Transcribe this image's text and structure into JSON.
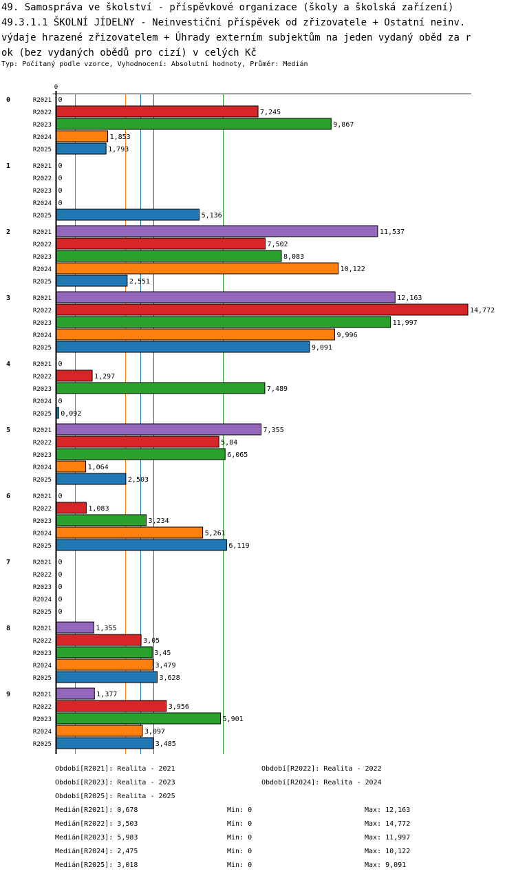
{
  "title_lines": [
    "49. Samospráva ve školství - příspěvkové organizace (školy a školská zařízení)",
    "49.3.1.1 ŠKOLNÍ JÍDELNY - Neinvestiční příspěvek od zřizovatele + Ostatní neinv.",
    "výdaje hrazené zřizovatelem + Úhrady externím subjektům na jeden vydaný oběd za r",
    "ok (bez vydaných obědů pro cizí) v celých Kč"
  ],
  "subtitle": "Typ: Počítaný podle vzorce, Vyhodnocení: Absolutní hodnoty, Průměr: Medián",
  "chart_data": {
    "type": "bar",
    "orientation": "horizontal",
    "title": "49.3.1.1 ŠKOLNÍ JÍDELNY - Neinvestiční příspěvek od zřizovatele + Ostatní neinv. výdaje hrazené zřizovatelem + Úhrady externím subjektům na jeden vydaný oběd za rok (bez vydaných obědů pro cizí) v celých Kč",
    "xlim": [
      0,
      14.772
    ],
    "x_tick_labels": [
      "0"
    ],
    "categories": [
      "0",
      "1",
      "2",
      "3",
      "4",
      "5",
      "6",
      "7",
      "8",
      "9"
    ],
    "series": [
      {
        "name": "R2021",
        "color": "#9467bd",
        "values": [
          0,
          0,
          11.537,
          12.163,
          0,
          7.355,
          0,
          0,
          1.355,
          1.377
        ],
        "labels": [
          "0",
          "0",
          "11,537",
          "12,163",
          "0",
          "7,355",
          "0",
          "0",
          "1,355",
          "1,377"
        ]
      },
      {
        "name": "R2022",
        "color": "#d62728",
        "values": [
          7.245,
          0,
          7.502,
          14.772,
          1.297,
          5.84,
          1.083,
          0,
          3.05,
          3.956
        ],
        "labels": [
          "7,245",
          "0",
          "7,502",
          "14,772",
          "1,297",
          "5,84",
          "1,083",
          "0",
          "3,05",
          "3,956"
        ]
      },
      {
        "name": "R2023",
        "color": "#2ca02c",
        "values": [
          9.867,
          0,
          8.083,
          11.997,
          7.489,
          6.065,
          3.234,
          0,
          3.45,
          5.901
        ],
        "labels": [
          "9,867",
          "0",
          "8,083",
          "11,997",
          "7,489",
          "6,065",
          "3,234",
          "0",
          "3,45",
          "5,901"
        ]
      },
      {
        "name": "R2024",
        "color": "#ff7f0e",
        "values": [
          1.853,
          0,
          10.122,
          9.996,
          0,
          1.064,
          5.261,
          0,
          3.479,
          3.097
        ],
        "labels": [
          "1,853",
          "0",
          "10,122",
          "9,996",
          "0",
          "1,064",
          "5,261",
          "0",
          "3,479",
          "3,097"
        ]
      },
      {
        "name": "R2025",
        "color": "#1f77b4",
        "values": [
          1.793,
          5.136,
          2.551,
          9.091,
          0.092,
          2.503,
          6.119,
          0,
          3.628,
          3.485
        ],
        "labels": [
          "1,793",
          "5,136",
          "2,551",
          "9,091",
          "0,092",
          "2,503",
          "6,119",
          "0",
          "3,628",
          "3,485"
        ]
      }
    ],
    "medians": [
      {
        "series": "R2021",
        "value": 0.678
      },
      {
        "series": "R2022",
        "value": 3.503
      },
      {
        "series": "R2023",
        "value": 5.983
      },
      {
        "series": "R2024",
        "value": 2.475
      },
      {
        "series": "R2025",
        "value": 3.018
      }
    ],
    "grid": false
  },
  "legend": {
    "periods": [
      "Období[R2021]: Realita - 2021",
      "Období[R2022]: Realita - 2022",
      "Období[R2023]: Realita - 2023",
      "Období[R2024]: Realita - 2024",
      "Období[R2025]: Realita - 2025"
    ],
    "stats": [
      {
        "median": "Medián[R2021]: 0,678",
        "min": "Min: 0",
        "max": "Max: 12,163"
      },
      {
        "median": "Medián[R2022]: 3,503",
        "min": "Min: 0",
        "max": "Max: 14,772"
      },
      {
        "median": "Medián[R2023]: 5,983",
        "min": "Min: 0",
        "max": "Max: 11,997"
      },
      {
        "median": "Medián[R2024]: 2,475",
        "min": "Min: 0",
        "max": "Max: 10,122"
      },
      {
        "median": "Medián[R2025]: 3,018",
        "min": "Min: 0",
        "max": "Max: 9,091"
      }
    ]
  }
}
